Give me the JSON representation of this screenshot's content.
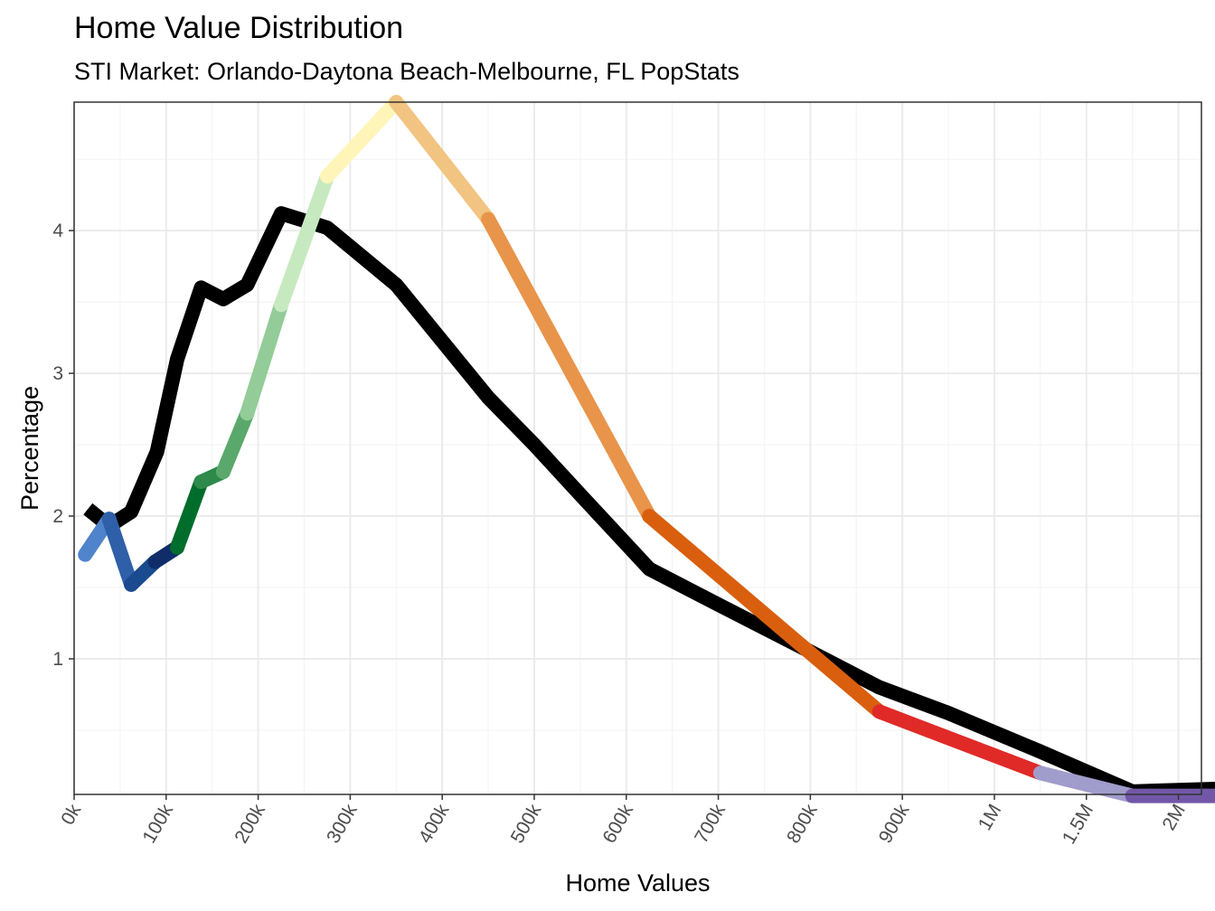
{
  "chart_data": {
    "type": "line",
    "title": "Home Value Distribution",
    "subtitle": "STI Market: Orlando-Daytona Beach-Melbourne, FL PopStats",
    "xlabel": "Home Values",
    "ylabel": "Percentage",
    "x_ticks": [
      "0k",
      "100k",
      "200k",
      "300k",
      "400k",
      "500k",
      "600k",
      "700k",
      "800k",
      "900k",
      "1M",
      "1.5M",
      "2M"
    ],
    "y_ticks": [
      1,
      2,
      3,
      4
    ],
    "ylim": [
      0.05,
      4.9
    ],
    "grid": true,
    "legend": "none",
    "series": [
      {
        "color": "#000000",
        "x": [
          0.15,
          0.38,
          0.62,
          0.9,
          1.12,
          1.38,
          1.62,
          1.88,
          2.25,
          2.75,
          3.5,
          4.5,
          5.0,
          5.5,
          6.25,
          7.0,
          8.0,
          8.75,
          9.5,
          10.5,
          11.5,
          12.5
        ],
        "y": [
          2.05,
          1.93,
          2.03,
          2.45,
          3.1,
          3.6,
          3.52,
          3.62,
          4.12,
          4.02,
          3.62,
          2.83,
          2.5,
          2.15,
          1.63,
          1.38,
          1.05,
          0.8,
          0.62,
          0.35,
          0.07,
          0.09
        ]
      },
      {
        "name": "segments",
        "points": [
          {
            "x": 0.12,
            "y": 1.73,
            "color": "#4f83cc"
          },
          {
            "x": 0.38,
            "y": 1.98,
            "color": "#2f5fa8"
          },
          {
            "x": 0.62,
            "y": 1.52,
            "color": "#1a4a8f"
          },
          {
            "x": 0.88,
            "y": 1.68,
            "color": "#102d6a"
          },
          {
            "x": 1.12,
            "y": 1.78,
            "color": "#006d2c"
          },
          {
            "x": 1.38,
            "y": 2.24,
            "color": "#2d8a4a"
          },
          {
            "x": 1.62,
            "y": 2.31,
            "color": "#5aa86b"
          },
          {
            "x": 1.88,
            "y": 2.72,
            "color": "#93cc98"
          },
          {
            "x": 2.25,
            "y": 3.48,
            "color": "#c7e9c0"
          },
          {
            "x": 2.75,
            "y": 4.38,
            "color": "#fff5b8"
          },
          {
            "x": 3.5,
            "y": 4.9,
            "color": "#f2c482"
          },
          {
            "x": 4.5,
            "y": 4.08,
            "color": "#e8944a"
          },
          {
            "x": 6.25,
            "y": 2.0,
            "color": "#d95f0e"
          },
          {
            "x": 8.75,
            "y": 0.63,
            "color": "#e02a28"
          },
          {
            "x": 10.5,
            "y": 0.2,
            "color": "#a09ccc"
          },
          {
            "x": 11.5,
            "y": 0.04,
            "color": "#7257a8"
          },
          {
            "x": 12.5,
            "y": 0.04,
            "color": "#54278f"
          }
        ]
      }
    ]
  }
}
